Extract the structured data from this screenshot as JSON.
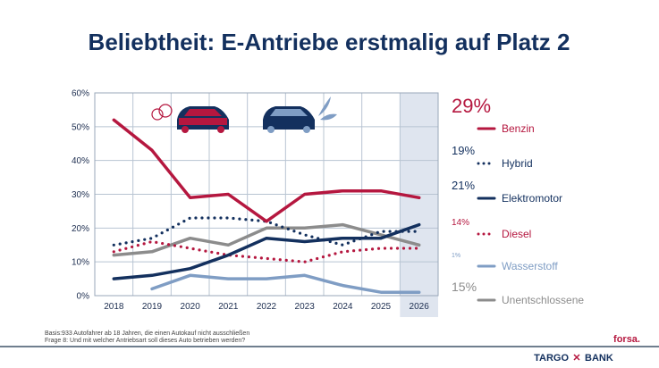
{
  "chart_data": {
    "type": "line",
    "title": "Beliebtheit: E-Antriebe erstmalig auf Platz 2",
    "categories": [
      "2018",
      "2019",
      "2020",
      "2021",
      "2022",
      "2023",
      "2024",
      "2025",
      "2026"
    ],
    "ylim": [
      0,
      60
    ],
    "yticks": [
      "0%",
      "10%",
      "20%",
      "30%",
      "40%",
      "50%",
      "60%"
    ],
    "grid": true,
    "highlighted_category": "2026",
    "legend_position": "right",
    "series": [
      {
        "name": "Benzin",
        "latest": "29%",
        "color": "#b5173f",
        "style": "solid",
        "values": [
          52,
          43,
          29,
          30,
          22,
          30,
          31,
          31,
          29
        ]
      },
      {
        "name": "Hybrid",
        "latest": "19%",
        "color": "#13305e",
        "style": "dotted",
        "values": [
          15,
          17,
          23,
          23,
          22,
          18,
          15,
          19,
          19
        ]
      },
      {
        "name": "Elektromotor",
        "latest": "21%",
        "color": "#13305e",
        "style": "solid",
        "values": [
          5,
          6,
          8,
          12,
          17,
          16,
          17,
          17,
          21
        ]
      },
      {
        "name": "Diesel",
        "latest": "14%",
        "color": "#b5173f",
        "style": "dotted",
        "values": [
          13,
          16,
          14,
          12,
          11,
          10,
          13,
          14,
          14
        ]
      },
      {
        "name": "Wasserstoff",
        "latest": "1%",
        "color": "#7f9dc4",
        "style": "solid",
        "values": [
          null,
          2,
          6,
          5,
          5,
          6,
          3,
          1,
          1
        ]
      },
      {
        "name": "Unentschlossene",
        "latest": "15%",
        "color": "#8c8c8c",
        "style": "solid",
        "values": [
          12,
          13,
          17,
          15,
          20,
          20,
          21,
          18,
          15
        ]
      }
    ]
  },
  "footnote": {
    "line1": "Basis:933 Autofahrer ab 18 Jahren, die einen Autokauf nicht ausschließen",
    "line2": "Frage 8: Und mit welcher Antriebsart soll dieses Auto betrieben werden?"
  },
  "logos": {
    "forsa": "forsa.",
    "bank_left": "TARGO",
    "bank_right": "BANK"
  },
  "colors": {
    "navy": "#13305e",
    "red": "#b5173f",
    "shade": "#dfe5ef"
  }
}
